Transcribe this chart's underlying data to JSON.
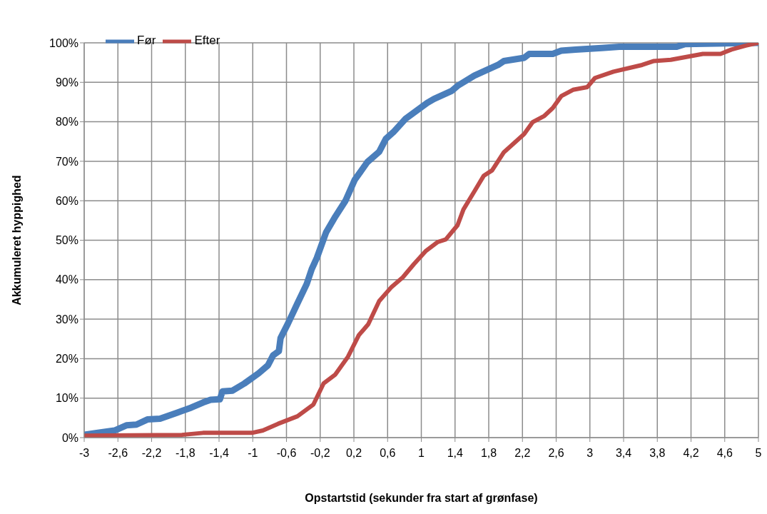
{
  "chart_data": {
    "type": "line",
    "xlabel": "Opstartstid (sekunder fra start af grønfase)",
    "ylabel": "Akkumuleret hyppighed",
    "xlim": [
      -3,
      5
    ],
    "xticks": [
      -3,
      {
        "value": -2.6,
        "label": "-2,6"
      },
      {
        "value": -2.2,
        "label": "-2,2"
      },
      {
        "value": -1.8,
        "label": "-1,8"
      },
      {
        "value": -1.4,
        "label": "-1,4"
      },
      -1,
      {
        "value": -0.6,
        "label": "-0,6"
      },
      {
        "value": -0.2,
        "label": "-0,2"
      },
      {
        "value": 0.2,
        "label": "0,2"
      },
      {
        "value": 0.6,
        "label": "0,6"
      },
      1,
      {
        "value": 1.4,
        "label": "1,4"
      },
      {
        "value": 1.8,
        "label": "1,8"
      },
      {
        "value": 2.2,
        "label": "2,2"
      },
      {
        "value": 2.6,
        "label": "2,6"
      },
      3,
      {
        "value": 3.4,
        "label": "3,4"
      },
      {
        "value": 3.8,
        "label": "3,8"
      },
      {
        "value": 4.2,
        "label": "4,2"
      },
      {
        "value": 4.6,
        "label": "4,6"
      },
      5
    ],
    "ylim": [
      0,
      100
    ],
    "yticks": [
      {
        "value": 0,
        "label": "0%"
      },
      {
        "value": 10,
        "label": "10%"
      },
      {
        "value": 20,
        "label": "20%"
      },
      {
        "value": 30,
        "label": "30%"
      },
      {
        "value": 40,
        "label": "40%"
      },
      {
        "value": 50,
        "label": "50%"
      },
      {
        "value": 60,
        "label": "60%"
      },
      {
        "value": 70,
        "label": "70%"
      },
      {
        "value": 80,
        "label": "80%"
      },
      {
        "value": 90,
        "label": "90%"
      },
      {
        "value": 100,
        "label": "100%"
      }
    ],
    "grid": true,
    "legend": "top left",
    "marker": "none",
    "line_style": "solid",
    "series": [
      {
        "name": "Før",
        "color": "#4a7ebb",
        "x": [
          -3,
          -2.85,
          -2.64,
          -2.5,
          -2.38,
          -2.25,
          -2.1,
          -1.9,
          -1.73,
          -1.59,
          -1.5,
          -1.39,
          -1.36,
          -1.24,
          -1.1,
          -0.93,
          -0.82,
          -0.76,
          -0.69,
          -0.67,
          -0.58,
          -0.47,
          -0.36,
          -0.3,
          -0.24,
          -0.13,
          -0.02,
          0.1,
          0.21,
          0.36,
          0.5,
          0.58,
          0.67,
          0.81,
          1.07,
          1.15,
          1.36,
          1.43,
          1.63,
          1.91,
          1.98,
          2.22,
          2.28,
          2.56,
          2.66,
          2.83,
          3.14,
          3.35,
          4.03,
          4.13,
          5
        ],
        "values": [
          0.7,
          1.2,
          1.8,
          3.1,
          3.3,
          4.6,
          4.8,
          6.3,
          7.6,
          8.9,
          9.6,
          9.7,
          11.7,
          11.9,
          13.7,
          16.3,
          18.3,
          20.8,
          21.9,
          25.2,
          29,
          34,
          38.9,
          42.7,
          45.5,
          52,
          56,
          60,
          65.3,
          69.8,
          72.4,
          75.7,
          77.4,
          80.7,
          84.8,
          85.8,
          87.8,
          89.1,
          91.7,
          94.4,
          95.4,
          96.2,
          97.2,
          97.2,
          98,
          98.3,
          98.7,
          99,
          99,
          99.7,
          100
        ]
      },
      {
        "name": "Efter",
        "color": "#be4b48",
        "x": [
          -3,
          -1.84,
          -1.59,
          -1.01,
          -0.88,
          -0.7,
          -0.47,
          -0.28,
          -0.16,
          -0.02,
          0.13,
          0.26,
          0.37,
          0.5,
          0.64,
          0.78,
          0.91,
          1.05,
          1.19,
          1.29,
          1.43,
          1.5,
          1.63,
          1.74,
          1.84,
          1.98,
          2.22,
          2.32,
          2.46,
          2.56,
          2.66,
          2.8,
          2.97,
          3.06,
          3.28,
          3.62,
          3.76,
          3.96,
          4.34,
          4.55,
          4.68,
          4.85,
          5
        ],
        "values": [
          0.5,
          0.7,
          1.2,
          1.2,
          1.8,
          3.5,
          5.4,
          8.4,
          13.7,
          16,
          20.5,
          26,
          28.7,
          34.6,
          38,
          40.6,
          43.9,
          47.2,
          49.5,
          50.2,
          53.8,
          57.8,
          62.4,
          66.3,
          67.7,
          72.3,
          76.9,
          79.9,
          81.5,
          83.5,
          86.5,
          88.1,
          88.8,
          91.1,
          92.7,
          94.4,
          95.4,
          95.7,
          97.2,
          97.2,
          98.3,
          99.3,
          100
        ]
      }
    ]
  }
}
